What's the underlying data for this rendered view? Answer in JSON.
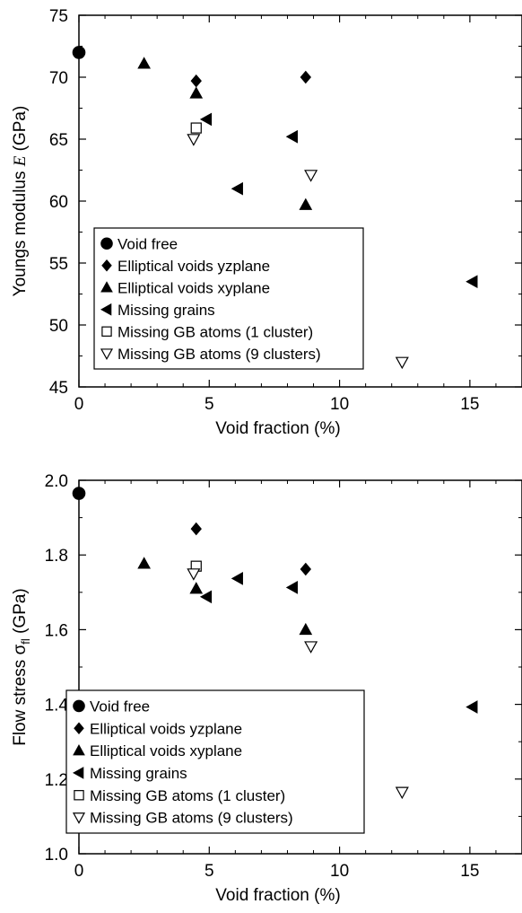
{
  "chart_data": [
    {
      "type": "scatter",
      "xlabel": "Void fraction (%)",
      "ylabel_parts": {
        "pre": "Youngs modulus ",
        "symbol": "E",
        "post": " (GPa)"
      },
      "xlim": [
        0,
        17
      ],
      "ylim": [
        45,
        75
      ],
      "xticks": [
        0,
        5,
        10,
        15
      ],
      "yticks": [
        45,
        50,
        55,
        60,
        65,
        70,
        75
      ],
      "legend_position": "lower-left",
      "series": [
        {
          "name": "Void free",
          "marker": "filled-circle",
          "points": [
            [
              0.0,
              72.0
            ]
          ]
        },
        {
          "name": "Elliptical voids yzplane",
          "marker": "filled-diamond",
          "points": [
            [
              4.5,
              69.7
            ],
            [
              8.7,
              70.0
            ]
          ]
        },
        {
          "name": "Elliptical voids xyplane",
          "marker": "filled-triangle-up",
          "points": [
            [
              2.5,
              71.1
            ],
            [
              4.5,
              68.7
            ],
            [
              8.7,
              59.7
            ]
          ]
        },
        {
          "name": "Missing grains",
          "marker": "filled-triangle-left",
          "points": [
            [
              4.9,
              66.6
            ],
            [
              6.1,
              61.0
            ],
            [
              8.2,
              65.2
            ],
            [
              15.1,
              53.5
            ]
          ]
        },
        {
          "name": "Missing GB atoms (1 cluster)",
          "marker": "open-square",
          "points": [
            [
              4.5,
              65.9
            ]
          ]
        },
        {
          "name": "Missing GB atoms (9 clusters)",
          "marker": "open-triangle-down",
          "points": [
            [
              4.4,
              65.0
            ],
            [
              8.9,
              62.1
            ],
            [
              12.4,
              47.0
            ]
          ]
        }
      ]
    },
    {
      "type": "scatter",
      "xlabel": "Void fraction (%)",
      "ylabel_parts": {
        "pre": "Flow stress σ",
        "sub": "fl",
        "post": " (GPa)"
      },
      "xlim": [
        0,
        17
      ],
      "ylim": [
        1.0,
        2.0
      ],
      "xticks": [
        0,
        5,
        10,
        15
      ],
      "yticks": [
        1.0,
        1.2,
        1.4,
        1.6,
        1.8,
        2.0
      ],
      "legend_position": "lower-left",
      "series": [
        {
          "name": "Void free",
          "marker": "filled-circle",
          "points": [
            [
              0.0,
              1.965
            ]
          ]
        },
        {
          "name": "Elliptical voids yzplane",
          "marker": "filled-diamond",
          "points": [
            [
              4.5,
              1.87
            ],
            [
              8.7,
              1.762
            ]
          ]
        },
        {
          "name": "Elliptical voids xyplane",
          "marker": "filled-triangle-up",
          "points": [
            [
              2.5,
              1.777
            ],
            [
              4.5,
              1.71
            ],
            [
              8.7,
              1.6
            ]
          ]
        },
        {
          "name": "Missing grains",
          "marker": "filled-triangle-left",
          "points": [
            [
              4.9,
              1.688
            ],
            [
              6.1,
              1.737
            ],
            [
              8.2,
              1.713
            ],
            [
              15.1,
              1.393
            ]
          ]
        },
        {
          "name": "Missing GB atoms (1 cluster)",
          "marker": "open-square",
          "points": [
            [
              4.5,
              1.77
            ]
          ]
        },
        {
          "name": "Missing GB atoms (9 clusters)",
          "marker": "open-triangle-down",
          "points": [
            [
              4.4,
              1.75
            ],
            [
              8.9,
              1.555
            ],
            [
              12.4,
              1.165
            ]
          ]
        }
      ]
    }
  ]
}
